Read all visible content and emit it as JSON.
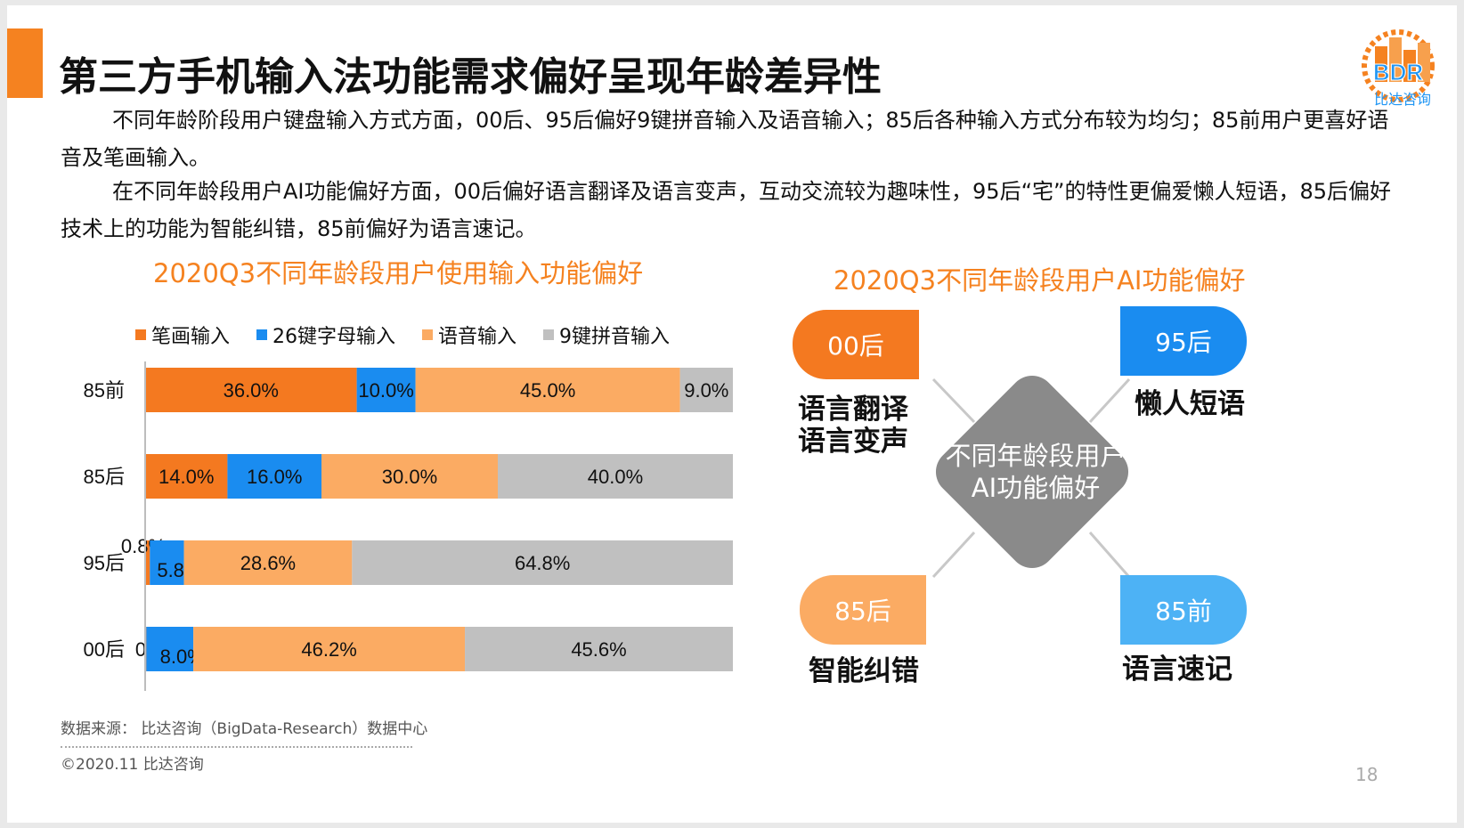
{
  "header": {
    "title": "第三方手机输入法功能需求偏好呈现年龄差异性",
    "logo_text": "BDR",
    "logo_subtext": "比达咨询"
  },
  "paragraphs": [
    "不同年龄阶段用户键盘输入方式方面，00后、95后偏好9键拼音输入及语音输入；85后各种输入方式分布较为均匀；85前用户更喜好语音及笔画输入。",
    "在不同年龄段用户AI功能偏好方面，00后偏好语言翻译及语言变声，互动交流较为趣味性，95后“宅”的特性更偏爱懒人短语，85后偏好技术上的功能为智能纠错，85前偏好为语言速记。"
  ],
  "chart_data": {
    "type": "bar",
    "orientation": "horizontal",
    "stacked": true,
    "title": "2020Q3不同年龄段用户使用输入功能偏好",
    "categories": [
      "85前",
      "85后",
      "95后",
      "00后"
    ],
    "series": [
      {
        "name": "笔画输入",
        "values": [
          36.0,
          14.0,
          0.8,
          0.2
        ],
        "labels": [
          "36.0%",
          "14.0%",
          "0.8%",
          "0.2%"
        ],
        "color": "#f47920"
      },
      {
        "name": "26键字母输入",
        "values": [
          10.0,
          16.0,
          5.8,
          8.0
        ],
        "labels": [
          "10.0%",
          "16.0%",
          "5.8%",
          "8.0%"
        ],
        "color": "#1a8cf0"
      },
      {
        "name": "语音输入",
        "values": [
          45.0,
          30.0,
          28.6,
          46.2
        ],
        "labels": [
          "45.0%",
          "30.0%",
          "28.6%",
          "46.2%"
        ],
        "color": "#fbab63"
      },
      {
        "name": "9键拼音输入",
        "values": [
          9.0,
          40.0,
          64.8,
          45.6
        ],
        "labels": [
          "9.0%",
          "40.0%",
          "64.8%",
          "45.6%"
        ],
        "color": "#c0c0c0"
      }
    ],
    "xlim": [
      0,
      100
    ],
    "legend_position": "top"
  },
  "ai_chart": {
    "title": "2020Q3不同年龄段用户AI功能偏好",
    "center": [
      "不同年龄段用户",
      "AI功能偏好"
    ],
    "groups": [
      {
        "badge": "00后",
        "features": [
          "语言翻译",
          "语言变声"
        ],
        "color": "#f47920"
      },
      {
        "badge": "95后",
        "features": [
          "懒人短语"
        ],
        "color": "#1a8cf0"
      },
      {
        "badge": "85后",
        "features": [
          "智能纠错"
        ],
        "color": "#fbab63"
      },
      {
        "badge": "85前",
        "features": [
          "语言速记"
        ],
        "color": "#4db2f5"
      }
    ],
    "center_color": "#8a8a8a"
  },
  "footer": {
    "source": "数据来源： 比达咨询（BigData-Research）数据中心",
    "copyright": "©2020.11   比达咨询",
    "page_number": "18"
  }
}
